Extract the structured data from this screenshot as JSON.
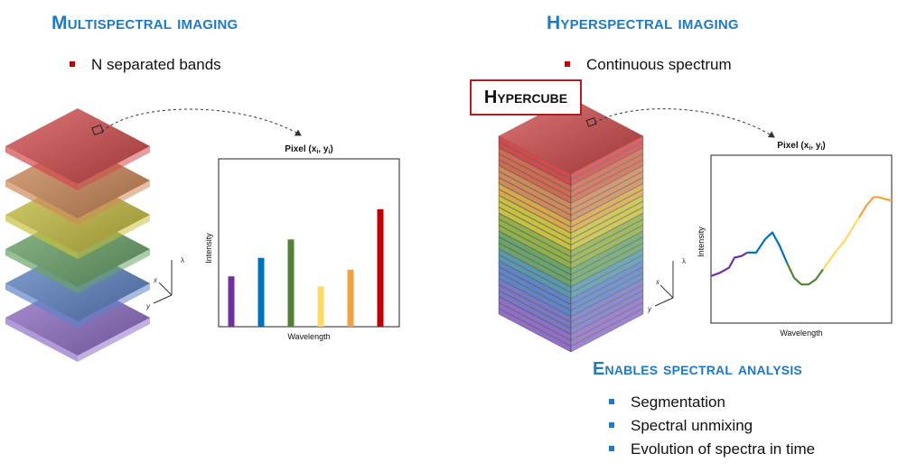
{
  "left": {
    "heading": "Multispectral imaging",
    "bullet": "N separated bands",
    "plot": {
      "title": "Pixel (x",
      "title_sub": "i",
      "title_mid": ", y",
      "title_end": ")",
      "xlabel": "Wavelength",
      "ylabel": "Intensity",
      "axes": {
        "x": "x",
        "y": "y",
        "z": "λ"
      }
    }
  },
  "right": {
    "heading": "Hyperspectral imaging",
    "bullet": "Continuous spectrum",
    "hypercube_label": "Hypercube",
    "plot": {
      "title": "Pixel (x",
      "title_sub": "i",
      "title_mid": ", y",
      "title_end": ")",
      "xlabel": "Wavelength",
      "ylabel": "Intensity",
      "axes": {
        "x": "x",
        "y": "y",
        "z": "λ"
      }
    },
    "analysis": {
      "heading": "Enables spectral analysis",
      "items": [
        "Segmentation",
        "Spectral unmixing",
        "Evolution of spectra in time"
      ]
    }
  },
  "colors": {
    "heading": "#1f7ac4",
    "bullet_red": "#c00000",
    "bullet_blue": "#1f7ac4",
    "hypercube_border": "#b01e24"
  },
  "chart_data": [
    {
      "type": "bar",
      "categories": [
        "violet",
        "blue",
        "green",
        "yellow",
        "orange",
        "red"
      ],
      "values": [
        0.3,
        0.41,
        0.52,
        0.24,
        0.34,
        0.7
      ],
      "colors": [
        "#7030a0",
        "#0070c0",
        "#548235",
        "#ffd966",
        "#f4a040",
        "#c00000"
      ],
      "xlabel": "Wavelength",
      "ylabel": "Intensity",
      "ylim": [
        0,
        1
      ]
    },
    {
      "type": "line",
      "x": [
        0,
        0.05,
        0.1,
        0.13,
        0.17,
        0.2,
        0.25,
        0.3,
        0.34,
        0.38,
        0.42,
        0.46,
        0.5,
        0.54,
        0.58,
        0.62,
        0.66,
        0.7,
        0.74,
        0.78,
        0.82,
        0.86,
        0.9,
        0.93,
        0.96,
        1.0
      ],
      "values": [
        0.28,
        0.3,
        0.33,
        0.39,
        0.4,
        0.42,
        0.42,
        0.5,
        0.54,
        0.46,
        0.36,
        0.27,
        0.23,
        0.23,
        0.26,
        0.32,
        0.38,
        0.44,
        0.49,
        0.56,
        0.63,
        0.7,
        0.75,
        0.75,
        0.74,
        0.73
      ],
      "color_ranges": [
        "#7030a0",
        "#0070c0",
        "#548235",
        "#ffd966",
        "#f4a040",
        "#c00000"
      ],
      "xlabel": "Wavelength",
      "ylabel": "Intensity",
      "ylim": [
        0,
        1
      ]
    }
  ]
}
